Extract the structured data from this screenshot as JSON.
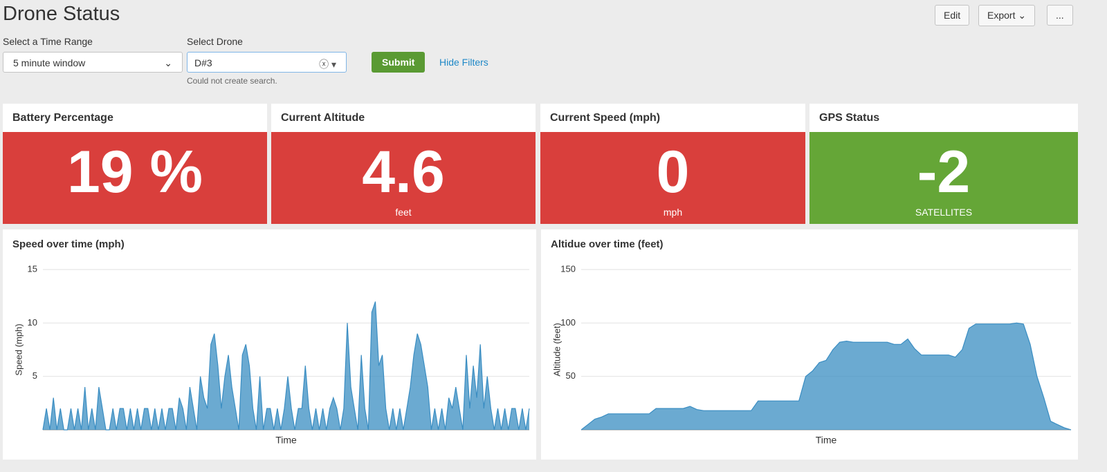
{
  "header": {
    "title": "Drone Status",
    "buttons": [
      "Edit",
      "Export",
      "..."
    ]
  },
  "filters": {
    "time_range": {
      "label": "Select a Time Range",
      "value": "5 minute window"
    },
    "drone": {
      "label": "Select Drone",
      "value": "D#3",
      "message": "Could not create search."
    },
    "submit": "Submit",
    "hide": "Hide Filters"
  },
  "singles": [
    {
      "title": "Battery Percentage",
      "value": 19,
      "suffix": "%",
      "color": "#d93f3c"
    },
    {
      "title": "Current Altitude",
      "value": 4.6,
      "unit": "feet",
      "color": "#d93f3c"
    },
    {
      "title": "Current Speed (mph)",
      "value": 0,
      "unit": "mph",
      "color": "#d93f3c"
    },
    {
      "title": "GPS Status",
      "value": -2,
      "unit": "SATELLITES",
      "color": "#65a637"
    }
  ],
  "chart_data": [
    {
      "type": "area",
      "title": "Speed over time (mph)",
      "y_label": "Speed (mph)",
      "x_label": "Time",
      "color": "#3a8dc2",
      "ylim": [
        0,
        15
      ],
      "yticks": [
        5,
        10,
        15
      ],
      "grid": true,
      "values": [
        0,
        2,
        0,
        3,
        0,
        2,
        0,
        0,
        2,
        0,
        2,
        0,
        4,
        0,
        2,
        0,
        4,
        2,
        0,
        0,
        2,
        0,
        2,
        2,
        0,
        2,
        0,
        2,
        0,
        2,
        2,
        0,
        2,
        0,
        2,
        0,
        2,
        2,
        0,
        3,
        2,
        0,
        4,
        2,
        0,
        5,
        3,
        2,
        8,
        9,
        6,
        2,
        5,
        7,
        4,
        2,
        0,
        7,
        8,
        6,
        2,
        0,
        5,
        0,
        2,
        2,
        0,
        2,
        0,
        2,
        5,
        2,
        0,
        2,
        2,
        6,
        2,
        0,
        2,
        0,
        2,
        0,
        2,
        3,
        2,
        0,
        2,
        10,
        4,
        2,
        0,
        7,
        2,
        0,
        11,
        12,
        6,
        7,
        2,
        0,
        2,
        0,
        2,
        0,
        2,
        4,
        7,
        9,
        8,
        6,
        4,
        0,
        2,
        0,
        2,
        0,
        3,
        2,
        4,
        2,
        0,
        7,
        2,
        6,
        3,
        8,
        2,
        5,
        2,
        0,
        2,
        0,
        2,
        0,
        2,
        2,
        0,
        2,
        0,
        2
      ]
    },
    {
      "type": "area",
      "title": "Altidue over time (feet)",
      "y_label": "Altitude (feet)",
      "x_label": "Time",
      "color": "#3a8dc2",
      "ylim": [
        0,
        150
      ],
      "yticks": [
        50,
        100,
        150
      ],
      "grid": true,
      "values": [
        0,
        5,
        10,
        12,
        15,
        15,
        15,
        15,
        15,
        15,
        15,
        20,
        20,
        20,
        20,
        20,
        22,
        19,
        18,
        18,
        18,
        18,
        18,
        18,
        18,
        18,
        27,
        27,
        27,
        27,
        27,
        27,
        27,
        50,
        55,
        63,
        65,
        75,
        82,
        83,
        82,
        82,
        82,
        82,
        82,
        82,
        80,
        80,
        85,
        76,
        70,
        70,
        70,
        70,
        70,
        68,
        75,
        95,
        99,
        99,
        99,
        99,
        99,
        99,
        100,
        99,
        80,
        50,
        30,
        8,
        5,
        2,
        0
      ]
    }
  ]
}
